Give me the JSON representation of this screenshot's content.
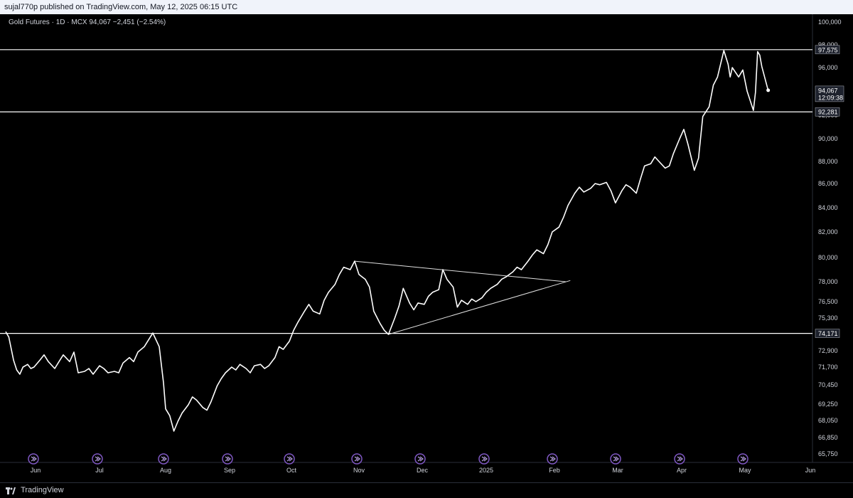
{
  "header": {
    "published_text": "sujal770p published on TradingView.com, May 12, 2025 06:15 UTC"
  },
  "legend": {
    "symbol": "Gold Futures · 1D · MCX",
    "last": "94,067",
    "change": "−2,451 (−2.54%)"
  },
  "footer": {
    "brand": "TradingView"
  },
  "chart_data": {
    "type": "line",
    "y_axis_labels": [
      {
        "value": 100000,
        "label": "100,000"
      },
      {
        "value": 98000,
        "label": "98,000"
      },
      {
        "value": 96000,
        "label": "96,000"
      },
      {
        "value": 94000,
        "label": "94,000"
      },
      {
        "value": 92000,
        "label": "92,000"
      },
      {
        "value": 90000,
        "label": "90,000"
      },
      {
        "value": 88000,
        "label": "88,000"
      },
      {
        "value": 86000,
        "label": "86,000"
      },
      {
        "value": 84000,
        "label": "84,000"
      },
      {
        "value": 82000,
        "label": "82,000"
      },
      {
        "value": 80000,
        "label": "80,000"
      },
      {
        "value": 78000,
        "label": "78,000"
      },
      {
        "value": 76500,
        "label": "76,500"
      },
      {
        "value": 75300,
        "label": "75,300"
      },
      {
        "value": 72900,
        "label": "72,900"
      },
      {
        "value": 71700,
        "label": "71,700"
      },
      {
        "value": 70450,
        "label": "70,450"
      },
      {
        "value": 69250,
        "label": "69,250"
      },
      {
        "value": 68050,
        "label": "68,050"
      },
      {
        "value": 66850,
        "label": "66,850"
      },
      {
        "value": 65750,
        "label": "65,750"
      }
    ],
    "x_axis_labels": [
      {
        "date": "2024-06-01",
        "label": "Jun"
      },
      {
        "date": "2024-07-01",
        "label": "Jul"
      },
      {
        "date": "2024-08-01",
        "label": "Aug"
      },
      {
        "date": "2024-09-01",
        "label": "Sep"
      },
      {
        "date": "2024-10-01",
        "label": "Oct"
      },
      {
        "date": "2024-11-01",
        "label": "Nov"
      },
      {
        "date": "2024-12-01",
        "label": "Dec"
      },
      {
        "date": "2025-01-01",
        "label": "2025"
      },
      {
        "date": "2025-02-01",
        "label": "Feb"
      },
      {
        "date": "2025-03-01",
        "label": "Mar"
      },
      {
        "date": "2025-04-01",
        "label": "Apr"
      },
      {
        "date": "2025-05-01",
        "label": "May"
      },
      {
        "date": "2025-06-01",
        "label": "Jun"
      }
    ],
    "series": [
      {
        "color": "#ffffff",
        "points": [
          [
            "2024-05-13",
            74300
          ],
          [
            "2024-05-15",
            73900
          ],
          [
            "2024-05-18",
            72200
          ],
          [
            "2024-05-20",
            71500
          ],
          [
            "2024-05-22",
            71200
          ],
          [
            "2024-05-24",
            71700
          ],
          [
            "2024-05-27",
            71900
          ],
          [
            "2024-05-29",
            71600
          ],
          [
            "2024-05-31",
            71700
          ],
          [
            "2024-06-03",
            72200
          ],
          [
            "2024-06-05",
            72600
          ],
          [
            "2024-06-07",
            72100
          ],
          [
            "2024-06-10",
            71600
          ],
          [
            "2024-06-12",
            72100
          ],
          [
            "2024-06-14",
            72600
          ],
          [
            "2024-06-17",
            72100
          ],
          [
            "2024-06-19",
            72800
          ],
          [
            "2024-06-21",
            71300
          ],
          [
            "2024-06-24",
            71400
          ],
          [
            "2024-06-26",
            71600
          ],
          [
            "2024-06-28",
            71200
          ],
          [
            "2024-07-01",
            71800
          ],
          [
            "2024-07-03",
            71600
          ],
          [
            "2024-07-05",
            71300
          ],
          [
            "2024-07-08",
            71400
          ],
          [
            "2024-07-10",
            71300
          ],
          [
            "2024-07-12",
            72000
          ],
          [
            "2024-07-15",
            72400
          ],
          [
            "2024-07-17",
            72100
          ],
          [
            "2024-07-19",
            72800
          ],
          [
            "2024-07-22",
            73200
          ],
          [
            "2024-07-24",
            73700
          ],
          [
            "2024-07-26",
            74200
          ],
          [
            "2024-07-29",
            73200
          ],
          [
            "2024-07-31",
            70600
          ],
          [
            "2024-08-01",
            68900
          ],
          [
            "2024-08-03",
            68400
          ],
          [
            "2024-08-05",
            67300
          ],
          [
            "2024-08-07",
            68000
          ],
          [
            "2024-08-09",
            68600
          ],
          [
            "2024-08-12",
            69200
          ],
          [
            "2024-08-14",
            69700
          ],
          [
            "2024-08-16",
            69500
          ],
          [
            "2024-08-19",
            69000
          ],
          [
            "2024-08-21",
            68800
          ],
          [
            "2024-08-23",
            69400
          ],
          [
            "2024-08-26",
            70400
          ],
          [
            "2024-08-28",
            70900
          ],
          [
            "2024-08-30",
            71300
          ],
          [
            "2024-09-02",
            71700
          ],
          [
            "2024-09-04",
            71500
          ],
          [
            "2024-09-06",
            71900
          ],
          [
            "2024-09-09",
            71600
          ],
          [
            "2024-09-11",
            71300
          ],
          [
            "2024-09-13",
            71800
          ],
          [
            "2024-09-16",
            71900
          ],
          [
            "2024-09-18",
            71600
          ],
          [
            "2024-09-20",
            71800
          ],
          [
            "2024-09-23",
            72400
          ],
          [
            "2024-09-25",
            73200
          ],
          [
            "2024-09-27",
            73000
          ],
          [
            "2024-09-30",
            73600
          ],
          [
            "2024-10-02",
            74400
          ],
          [
            "2024-10-04",
            75000
          ],
          [
            "2024-10-07",
            75800
          ],
          [
            "2024-10-09",
            76300
          ],
          [
            "2024-10-11",
            75800
          ],
          [
            "2024-10-14",
            75600
          ],
          [
            "2024-10-16",
            76600
          ],
          [
            "2024-10-18",
            77200
          ],
          [
            "2024-10-21",
            77800
          ],
          [
            "2024-10-23",
            78600
          ],
          [
            "2024-10-25",
            79200
          ],
          [
            "2024-10-28",
            79000
          ],
          [
            "2024-10-30",
            79700
          ],
          [
            "2024-11-01",
            78600
          ],
          [
            "2024-11-04",
            78200
          ],
          [
            "2024-11-06",
            77600
          ],
          [
            "2024-11-08",
            75800
          ],
          [
            "2024-11-11",
            74900
          ],
          [
            "2024-11-13",
            74400
          ],
          [
            "2024-11-15",
            74100
          ],
          [
            "2024-11-18",
            75300
          ],
          [
            "2024-11-20",
            76200
          ],
          [
            "2024-11-22",
            77500
          ],
          [
            "2024-11-25",
            76400
          ],
          [
            "2024-11-27",
            75900
          ],
          [
            "2024-11-29",
            76400
          ],
          [
            "2024-12-02",
            76300
          ],
          [
            "2024-12-04",
            76900
          ],
          [
            "2024-12-06",
            77200
          ],
          [
            "2024-12-09",
            77400
          ],
          [
            "2024-12-11",
            79000
          ],
          [
            "2024-12-13",
            78200
          ],
          [
            "2024-12-16",
            77600
          ],
          [
            "2024-12-18",
            76100
          ],
          [
            "2024-12-20",
            76600
          ],
          [
            "2024-12-23",
            76300
          ],
          [
            "2024-12-25",
            76700
          ],
          [
            "2024-12-27",
            76500
          ],
          [
            "2024-12-30",
            76800
          ],
          [
            "2025-01-01",
            77200
          ],
          [
            "2025-01-03",
            77500
          ],
          [
            "2025-01-06",
            77800
          ],
          [
            "2025-01-08",
            78200
          ],
          [
            "2025-01-10",
            78400
          ],
          [
            "2025-01-13",
            78800
          ],
          [
            "2025-01-15",
            79200
          ],
          [
            "2025-01-17",
            79000
          ],
          [
            "2025-01-20",
            79700
          ],
          [
            "2025-01-22",
            80200
          ],
          [
            "2025-01-24",
            80600
          ],
          [
            "2025-01-27",
            80300
          ],
          [
            "2025-01-29",
            81000
          ],
          [
            "2025-01-31",
            82000
          ],
          [
            "2025-02-03",
            82400
          ],
          [
            "2025-02-05",
            83200
          ],
          [
            "2025-02-07",
            84200
          ],
          [
            "2025-02-10",
            85200
          ],
          [
            "2025-02-12",
            85700
          ],
          [
            "2025-02-14",
            85300
          ],
          [
            "2025-02-17",
            85600
          ],
          [
            "2025-02-19",
            86000
          ],
          [
            "2025-02-21",
            85900
          ],
          [
            "2025-02-24",
            86100
          ],
          [
            "2025-02-26",
            85400
          ],
          [
            "2025-02-28",
            84400
          ],
          [
            "2025-03-03",
            85400
          ],
          [
            "2025-03-05",
            85900
          ],
          [
            "2025-03-07",
            85700
          ],
          [
            "2025-03-10",
            85200
          ],
          [
            "2025-03-12",
            86400
          ],
          [
            "2025-03-14",
            87600
          ],
          [
            "2025-03-17",
            87800
          ],
          [
            "2025-03-19",
            88400
          ],
          [
            "2025-03-21",
            88000
          ],
          [
            "2025-03-24",
            87400
          ],
          [
            "2025-03-26",
            87600
          ],
          [
            "2025-03-28",
            88700
          ],
          [
            "2025-03-31",
            90000
          ],
          [
            "2025-04-02",
            90800
          ],
          [
            "2025-04-04",
            89500
          ],
          [
            "2025-04-07",
            87200
          ],
          [
            "2025-04-09",
            88300
          ],
          [
            "2025-04-11",
            91900
          ],
          [
            "2025-04-14",
            92700
          ],
          [
            "2025-04-16",
            94500
          ],
          [
            "2025-04-18",
            95200
          ],
          [
            "2025-04-21",
            97500
          ],
          [
            "2025-04-23",
            96300
          ],
          [
            "2025-04-24",
            95200
          ],
          [
            "2025-04-25",
            96000
          ],
          [
            "2025-04-28",
            95200
          ],
          [
            "2025-04-30",
            95800
          ],
          [
            "2025-05-02",
            94000
          ],
          [
            "2025-05-05",
            92400
          ],
          [
            "2025-05-06",
            93900
          ],
          [
            "2025-05-07",
            97400
          ],
          [
            "2025-05-08",
            97100
          ],
          [
            "2025-05-09",
            96100
          ],
          [
            "2025-05-12",
            94067
          ]
        ]
      }
    ],
    "horizontal_levels": [
      {
        "value": 97575,
        "label": "97,575"
      },
      {
        "value": 92281,
        "label": "92,281"
      },
      {
        "value": 74171,
        "label": "74,171"
      }
    ],
    "trendlines": [
      {
        "from": [
          "2024-10-30",
          79700
        ],
        "to": [
          "2025-02-06",
          78000
        ]
      },
      {
        "from": [
          "2024-11-15",
          74100
        ],
        "to": [
          "2025-02-08",
          78100
        ]
      }
    ],
    "last_price": {
      "value": 94067,
      "label": "94,067",
      "countdown": "12:09:38"
    }
  }
}
